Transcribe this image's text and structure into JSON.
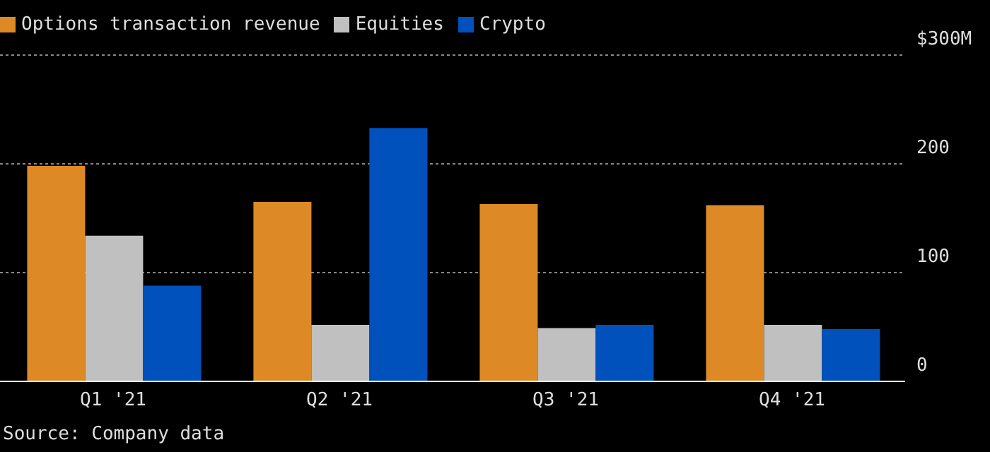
{
  "chart_data": {
    "type": "bar",
    "categories": [
      "Q1 '21",
      "Q2 '21",
      "Q3 '21",
      "Q4 '21"
    ],
    "series": [
      {
        "name": "Options transaction revenue",
        "color": "#dd8a26",
        "values": [
          198,
          165,
          163,
          162
        ]
      },
      {
        "name": "Equities",
        "color": "#c0c0c0",
        "values": [
          134,
          52,
          49,
          52
        ]
      },
      {
        "name": "Crypto",
        "color": "#0051bb",
        "values": [
          88,
          233,
          52,
          48
        ]
      }
    ],
    "ylim": [
      0,
      300
    ],
    "yticks": [
      0,
      100,
      200,
      {
        "value": 300,
        "label": "$300M"
      }
    ],
    "grid": "y",
    "legend": "top left",
    "annotations": [
      "Source: Company data"
    ]
  }
}
